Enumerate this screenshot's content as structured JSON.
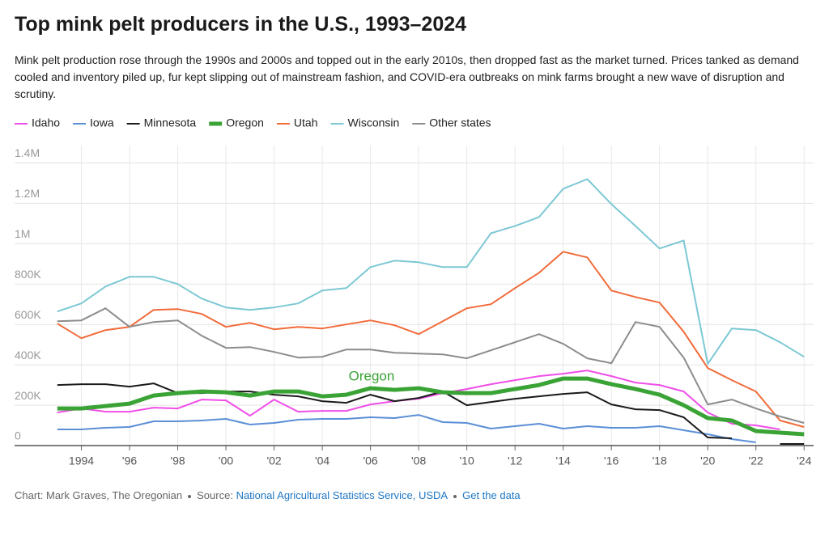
{
  "chart_data": {
    "type": "line",
    "title": "Top mink pelt producers in the U.S., 1993–2024",
    "subtitle": "Mink pelt production rose through the 1990s and 2000s and topped out in the early 2010s, then dropped fast as the market turned. Prices tanked as demand cooled and inventory piled up, fur kept slipping out of mainstream fashion, and COVID-era outbreaks on mink farms brought a new wave of disruption and scrutiny.",
    "annotation": "Oregon",
    "x": [
      1993,
      1994,
      1995,
      1996,
      1997,
      1998,
      1999,
      2000,
      2001,
      2002,
      2003,
      2004,
      2005,
      2006,
      2007,
      2008,
      2009,
      2010,
      2011,
      2012,
      2013,
      2014,
      2015,
      2016,
      2017,
      2018,
      2019,
      2020,
      2021,
      2022,
      2023,
      2024
    ],
    "xlim": [
      1992,
      2025
    ],
    "xticks": [
      {
        "value": 1994,
        "label": "1994"
      },
      {
        "value": 1996,
        "label": "'96"
      },
      {
        "value": 1998,
        "label": "'98"
      },
      {
        "value": 2000,
        "label": "'00"
      },
      {
        "value": 2002,
        "label": "'02"
      },
      {
        "value": 2004,
        "label": "'04"
      },
      {
        "value": 2006,
        "label": "'06"
      },
      {
        "value": 2008,
        "label": "'08"
      },
      {
        "value": 2010,
        "label": "'10"
      },
      {
        "value": 2012,
        "label": "'12"
      },
      {
        "value": 2014,
        "label": "'14"
      },
      {
        "value": 2016,
        "label": "'16"
      },
      {
        "value": 2018,
        "label": "'18"
      },
      {
        "value": 2020,
        "label": "'20"
      },
      {
        "value": 2022,
        "label": "'22"
      },
      {
        "value": 2024,
        "label": "'24"
      }
    ],
    "ylim": [
      0,
      1450000
    ],
    "yticks": [
      0,
      {
        "value": 200000,
        "label": "200K"
      },
      {
        "value": 400000,
        "label": "400K"
      },
      {
        "value": 600000,
        "label": "600K"
      },
      {
        "value": 800000,
        "label": "800K"
      },
      {
        "value": 1000000,
        "label": "1M"
      },
      {
        "value": 1200000,
        "label": "1.2M"
      },
      {
        "value": 1400000,
        "label": "1.4M"
      }
    ],
    "grid": true,
    "series": [
      {
        "name": "Idaho",
        "color": "#f04ee8",
        "linewidth": 2,
        "values": [
          164000,
          184000,
          168000,
          168000,
          188000,
          184000,
          228000,
          224000,
          148000,
          228000,
          168000,
          172000,
          172000,
          204000,
          220000,
          232000,
          260000,
          280000,
          304000,
          324000,
          344000,
          356000,
          372000,
          344000,
          312000,
          300000,
          268000,
          164000,
          108000,
          100000,
          80000,
          null
        ]
      },
      {
        "name": "Iowa",
        "color": "#5b8fd6",
        "linewidth": 2,
        "values": [
          80000,
          80000,
          88000,
          92000,
          120000,
          120000,
          124000,
          132000,
          104000,
          112000,
          128000,
          132000,
          132000,
          140000,
          136000,
          152000,
          116000,
          112000,
          84000,
          96000,
          108000,
          84000,
          96000,
          88000,
          88000,
          96000,
          76000,
          56000,
          32000,
          16000,
          null,
          null
        ]
      },
      {
        "name": "Minnesota",
        "color": "#1a1a1a",
        "linewidth": 2,
        "values": [
          300000,
          304000,
          304000,
          292000,
          308000,
          260000,
          260000,
          268000,
          268000,
          252000,
          244000,
          220000,
          212000,
          252000,
          220000,
          236000,
          268000,
          200000,
          216000,
          232000,
          244000,
          256000,
          264000,
          204000,
          180000,
          176000,
          140000,
          40000,
          36000,
          null,
          8000,
          8000
        ]
      },
      {
        "name": "Oregon",
        "color": "#3aa335",
        "linewidth": 5,
        "values": [
          184000,
          184000,
          196000,
          208000,
          248000,
          260000,
          268000,
          264000,
          248000,
          268000,
          268000,
          244000,
          252000,
          284000,
          276000,
          284000,
          264000,
          260000,
          260000,
          280000,
          300000,
          332000,
          332000,
          304000,
          280000,
          252000,
          200000,
          136000,
          124000,
          72000,
          64000,
          56000
        ]
      },
      {
        "name": "Utah",
        "color": "#f26b3a",
        "linewidth": 2,
        "values": [
          604000,
          532000,
          572000,
          588000,
          672000,
          676000,
          652000,
          588000,
          608000,
          576000,
          588000,
          580000,
          600000,
          620000,
          596000,
          552000,
          616000,
          680000,
          700000,
          780000,
          856000,
          960000,
          932000,
          768000,
          736000,
          708000,
          564000,
          384000,
          324000,
          268000,
          124000,
          92000
        ]
      },
      {
        "name": "Wisconsin",
        "color": "#7cc8d4",
        "linewidth": 2,
        "values": [
          664000,
          704000,
          788000,
          836000,
          836000,
          800000,
          728000,
          684000,
          672000,
          684000,
          704000,
          768000,
          780000,
          884000,
          916000,
          908000,
          884000,
          884000,
          1052000,
          1088000,
          1132000,
          1272000,
          1320000,
          1196000,
          1088000,
          976000,
          1016000,
          404000,
          580000,
          572000,
          512000,
          440000
        ]
      },
      {
        "name": "Other states",
        "color": "#8c8c8c",
        "linewidth": 2,
        "values": [
          616000,
          620000,
          680000,
          588000,
          612000,
          620000,
          544000,
          484000,
          488000,
          464000,
          436000,
          440000,
          476000,
          476000,
          460000,
          456000,
          452000,
          432000,
          472000,
          512000,
          552000,
          504000,
          432000,
          408000,
          612000,
          588000,
          436000,
          204000,
          228000,
          184000,
          144000,
          112000
        ]
      }
    ]
  },
  "footer": {
    "credit": "Chart: Mark Graves, The Oregonian",
    "source_label": "Source:",
    "source_link": "National Agricultural Statistics Service, USDA",
    "data_link": "Get the data"
  }
}
